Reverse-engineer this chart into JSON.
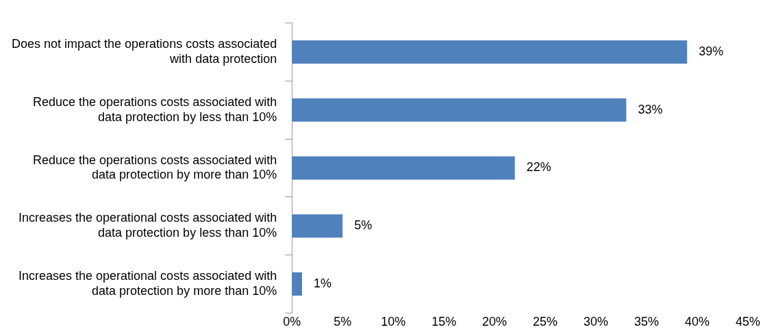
{
  "chart_data": {
    "type": "bar",
    "orientation": "horizontal",
    "categories": [
      "Does not impact the operations costs associated\nwith data protection",
      "Reduce the operations costs associated with\ndata protection by less than 10%",
      "Reduce the operations costs associated with\ndata protection by more than 10%",
      "Increases the operational costs associated with\ndata protection by less than 10%",
      "Increases the operational costs associated with\ndata protection by more than 10%"
    ],
    "values": [
      39,
      33,
      22,
      5,
      1
    ],
    "value_labels": [
      "39%",
      "33%",
      "22%",
      "5%",
      "1%"
    ],
    "color": "#4f81bd",
    "xlim": [
      0,
      45
    ],
    "xticks": [
      {
        "value": 0,
        "label": "0%"
      },
      {
        "value": 5,
        "label": "5%"
      },
      {
        "value": 10,
        "label": "10%"
      },
      {
        "value": 15,
        "label": "15%"
      },
      {
        "value": 20,
        "label": "20%"
      },
      {
        "value": 25,
        "label": "25%"
      },
      {
        "value": 30,
        "label": "30%"
      },
      {
        "value": 35,
        "label": "35%"
      },
      {
        "value": 40,
        "label": "40%"
      },
      {
        "value": 45,
        "label": "45%"
      }
    ],
    "grid": false,
    "legend": false
  }
}
